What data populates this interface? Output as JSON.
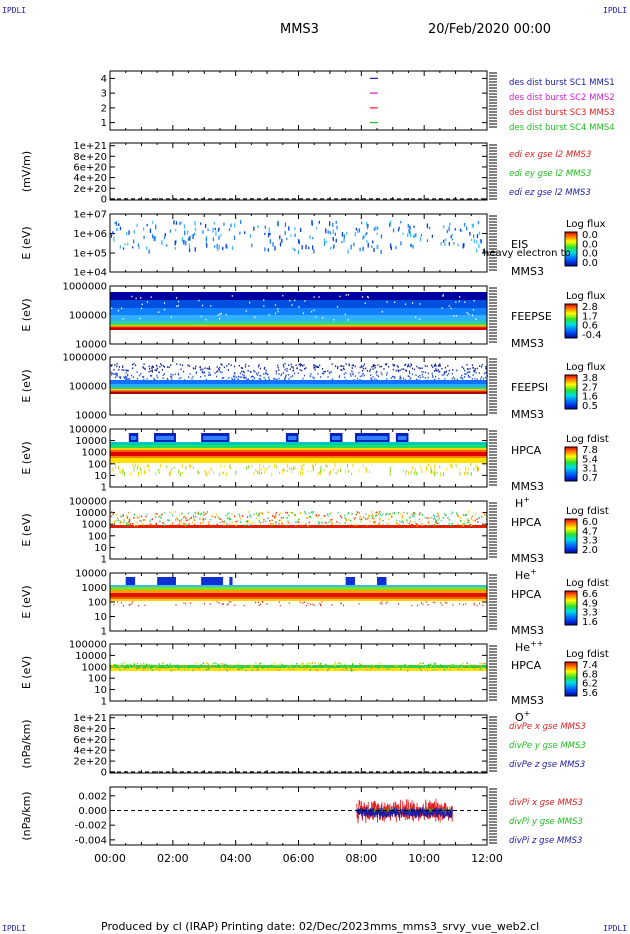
{
  "header": {
    "title": "MMS3",
    "date": "20/Feb/2020 00:00",
    "corner_label": "IPDLI"
  },
  "footer": {
    "produced_by": "Produced by cl (IRAP)",
    "printing_date": "Printing date: 02/Dec/2023",
    "script_name": "mms_mms3_srvy_vue_web2.cl"
  },
  "chart_data": [
    {
      "type": "line",
      "panel": "data availability",
      "y_ticks": [
        "1",
        "2",
        "3",
        "4"
      ],
      "ylim": [
        0.5,
        4.5
      ],
      "x_ticks": [
        "00:00",
        "02:00",
        "04:00",
        "06:00",
        "08:00",
        "10:00",
        "12:00"
      ],
      "x_hours": [
        0,
        2,
        4,
        6,
        8,
        10,
        12
      ],
      "series": [
        {
          "name": "des dist burst SC1 MMS1",
          "color": "#1a1aa6",
          "y": 4
        },
        {
          "name": "des dist burst SC2 MMS2",
          "color": "#d020d0",
          "y": 3
        },
        {
          "name": "des dist burst SC3 MMS3",
          "color": "#e02020",
          "y": 2
        },
        {
          "name": "des dist burst SC4 MMS4",
          "color": "#20c020",
          "y": 1
        }
      ],
      "marker_hour": 8.4
    },
    {
      "type": "line",
      "panel": "edi electric field",
      "ylabel": "(mV/m)",
      "y_ticks": [
        "0",
        "2e+20",
        "4e+20",
        "6e+20",
        "8e+20",
        "1e+21"
      ],
      "ylim": [
        -2e+19,
        1.05e+21
      ],
      "zero_line": true,
      "series": [
        {
          "name": "edi ex gse l2 MMS3",
          "color": "#e02020"
        },
        {
          "name": "edi ey gse l2 MMS3",
          "color": "#20c020"
        },
        {
          "name": "edi ez gse l2 MMS3",
          "color": "#1a1aa6"
        }
      ]
    },
    {
      "type": "heatmap",
      "panel": "EIS",
      "ylabel": "E (eV)",
      "y_ticks": [
        "1e+04",
        "1e+05",
        "1e+06",
        "1e+07"
      ],
      "scale": "log",
      "instrument": "EIS",
      "overlay_text": "heavy electron to",
      "sc": "MMS3",
      "colorbar_label": "Log flux",
      "colorbar_ticks": [
        "0.0",
        "0.0",
        "0.0",
        "0.0"
      ]
    },
    {
      "type": "heatmap",
      "panel": "FEEPSE",
      "ylabel": "E (eV)",
      "y_ticks": [
        "10000",
        "100000",
        "1000000"
      ],
      "instrument": "FEEPSE",
      "sc": "MMS3",
      "colorbar_label": "Log flux",
      "colorbar_ticks": [
        "2.8",
        "1.7",
        "0.6",
        "-0.4"
      ]
    },
    {
      "type": "heatmap",
      "panel": "FEEPSI",
      "ylabel": "E (eV)",
      "y_ticks": [
        "10000",
        "100000",
        "1000000"
      ],
      "instrument": "FEEPSI",
      "sc": "MMS3",
      "colorbar_label": "Log flux",
      "colorbar_ticks": [
        "3.8",
        "2.7",
        "1.6",
        "0.5"
      ]
    },
    {
      "type": "heatmap",
      "panel": "HPCA H+",
      "ylabel": "E (eV)",
      "y_ticks": [
        "1",
        "10",
        "100",
        "1000",
        "10000",
        "100000"
      ],
      "instrument": "HPCA",
      "sc": "MMS3",
      "species": "H",
      "species_charge": "+",
      "colorbar_label": "Log fdist",
      "colorbar_ticks": [
        "7.8",
        "5.4",
        "3.1",
        "0.7"
      ]
    },
    {
      "type": "heatmap",
      "panel": "HPCA He+",
      "ylabel": "E (eV)",
      "y_ticks": [
        "1",
        "10",
        "100",
        "1000",
        "10000",
        "100000"
      ],
      "instrument": "HPCA",
      "sc": "MMS3",
      "species": "He",
      "species_charge": "+",
      "colorbar_label": "Log fdist",
      "colorbar_ticks": [
        "6.0",
        "4.7",
        "3.3",
        "2.0"
      ]
    },
    {
      "type": "heatmap",
      "panel": "HPCA He++",
      "ylabel": "E (eV)",
      "y_ticks": [
        "1",
        "10",
        "100",
        "1000",
        "10000"
      ],
      "instrument": "HPCA",
      "sc": "MMS3",
      "species": "He",
      "species_charge": "++",
      "colorbar_label": "Log fdist",
      "colorbar_ticks": [
        "6.6",
        "4.9",
        "3.3",
        "1.6"
      ]
    },
    {
      "type": "heatmap",
      "panel": "HPCA O+",
      "ylabel": "E (eV)",
      "y_ticks": [
        "1",
        "10",
        "100",
        "1000",
        "10000",
        "100000"
      ],
      "instrument": "HPCA",
      "sc": "MMS3",
      "species": "O",
      "species_charge": "+",
      "colorbar_label": "Log fdist",
      "colorbar_ticks": [
        "7.4",
        "6.8",
        "6.2",
        "5.6"
      ]
    },
    {
      "type": "line",
      "panel": "divPe",
      "ylabel": "(nPa/km)",
      "y_ticks": [
        "0",
        "2e+20",
        "4e+20",
        "6e+20",
        "8e+20",
        "1e+21"
      ],
      "ylim": [
        -2e+19,
        1.05e+21
      ],
      "zero_line": true,
      "series": [
        {
          "name": "divPe x gse MMS3",
          "color": "#e02020"
        },
        {
          "name": "divPe y gse MMS3",
          "color": "#20c020"
        },
        {
          "name": "divPe z gse MMS3",
          "color": "#1a1aa6"
        }
      ]
    },
    {
      "type": "line",
      "panel": "divPi",
      "ylabel": "(nPa/km)",
      "y_ticks": [
        "-0.004",
        "-0.002",
        "0.000",
        "0.002"
      ],
      "ylim": [
        -0.0047,
        0.0032
      ],
      "xlim": [
        0,
        12
      ],
      "zero_line": true,
      "data_interval_hours": [
        7.85,
        10.9
      ],
      "series": [
        {
          "name": "divPi x gse MMS3",
          "color": "#e02020",
          "amplitude": 0.0018
        },
        {
          "name": "divPi y gse MMS3",
          "color": "#20c020",
          "amplitude": 0.0002
        },
        {
          "name": "divPi z gse MMS3",
          "color": "#1a1aa6",
          "amplitude": 0.0008
        }
      ]
    }
  ]
}
